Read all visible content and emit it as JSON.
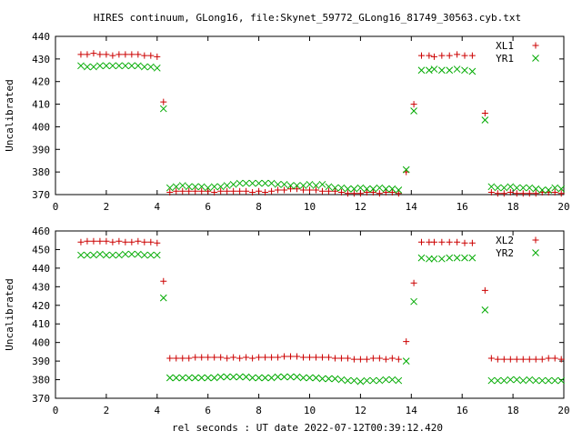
{
  "title": "HIRES continuum, GLong16, file:Skynet_59772_GLong16_81749_30563.cyb.txt",
  "xlabel": "rel seconds : UT date 2022-07-12T00:39:12.420",
  "chart_data": [
    {
      "type": "scatter",
      "ylabel": "Uncalibrated",
      "xlim": [
        0,
        20
      ],
      "ylim": [
        370,
        440
      ],
      "xticks": [
        0,
        2,
        4,
        6,
        8,
        10,
        12,
        14,
        16,
        18,
        20
      ],
      "yticks": [
        370,
        380,
        390,
        400,
        410,
        420,
        430,
        440
      ],
      "legend_position": "top-right",
      "series": [
        {
          "name": "XL1",
          "marker": "plus",
          "color": "#cc0000",
          "x": [
            1.0,
            1.25,
            1.5,
            1.75,
            2.0,
            2.25,
            2.5,
            2.75,
            3.0,
            3.25,
            3.5,
            3.75,
            4.0,
            4.25,
            4.5,
            4.75,
            5.0,
            5.25,
            5.5,
            5.75,
            6.0,
            6.25,
            6.5,
            6.75,
            7.0,
            7.25,
            7.5,
            7.75,
            8.0,
            8.25,
            8.5,
            8.75,
            9.0,
            9.25,
            9.5,
            9.75,
            10.0,
            10.25,
            10.5,
            10.75,
            11.0,
            11.25,
            11.5,
            11.75,
            12.0,
            12.25,
            12.5,
            12.75,
            13.0,
            13.25,
            13.5,
            13.8,
            14.1,
            14.4,
            14.7,
            14.9,
            15.2,
            15.5,
            15.8,
            16.1,
            16.4,
            16.9,
            17.15,
            17.4,
            17.65,
            17.9,
            18.15,
            18.4,
            18.65,
            18.9,
            19.15,
            19.4,
            19.65,
            19.9
          ],
          "y": [
            432,
            432,
            432.5,
            432,
            432,
            431.5,
            432,
            432,
            432,
            432,
            431.5,
            431.5,
            431,
            411,
            371,
            371.5,
            371.5,
            371.5,
            371.5,
            371.5,
            371.5,
            371,
            371.5,
            371.5,
            371.5,
            371.5,
            371.5,
            371,
            371.5,
            371,
            371.5,
            372,
            372,
            372.5,
            372.5,
            372,
            372,
            372,
            371.5,
            371.5,
            371.5,
            371,
            370.5,
            370.5,
            370.5,
            371,
            371,
            370.5,
            371,
            371,
            370.5,
            380,
            410,
            431.5,
            431.5,
            431,
            431.5,
            431.5,
            432,
            431.5,
            431.5,
            406,
            371,
            370.5,
            370.5,
            371,
            370.5,
            370.5,
            370.5,
            370.5,
            371,
            371,
            371,
            370.5
          ]
        },
        {
          "name": "YR1",
          "marker": "cross",
          "color": "#00aa00",
          "x": [
            1.0,
            1.25,
            1.5,
            1.75,
            2.0,
            2.25,
            2.5,
            2.75,
            3.0,
            3.25,
            3.5,
            3.75,
            4.0,
            4.25,
            4.5,
            4.75,
            5.0,
            5.25,
            5.5,
            5.75,
            6.0,
            6.25,
            6.5,
            6.75,
            7.0,
            7.25,
            7.5,
            7.75,
            8.0,
            8.25,
            8.5,
            8.75,
            9.0,
            9.25,
            9.5,
            9.75,
            10.0,
            10.25,
            10.5,
            10.75,
            11.0,
            11.25,
            11.5,
            11.75,
            12.0,
            12.25,
            12.5,
            12.75,
            13.0,
            13.25,
            13.5,
            13.8,
            14.1,
            14.4,
            14.7,
            14.9,
            15.2,
            15.5,
            15.8,
            16.1,
            16.4,
            16.9,
            17.15,
            17.4,
            17.65,
            17.9,
            18.15,
            18.4,
            18.65,
            18.9,
            19.15,
            19.4,
            19.65,
            19.9
          ],
          "y": [
            427,
            426.5,
            426.5,
            427,
            427,
            427,
            427,
            427,
            427,
            427,
            426.5,
            426.5,
            426,
            408,
            373,
            373.5,
            374,
            373.5,
            373.5,
            373.5,
            373,
            373.5,
            373.5,
            374,
            374.5,
            375,
            375,
            375,
            375,
            375,
            375,
            374.5,
            374.5,
            374,
            374,
            374,
            374.5,
            374,
            374.5,
            373.5,
            373,
            373,
            372.5,
            372.5,
            373,
            372.5,
            372.5,
            373,
            372.5,
            372.5,
            372,
            381,
            407,
            425,
            425,
            425.5,
            425,
            425,
            425.5,
            425,
            424.5,
            403,
            373.5,
            373,
            373,
            373.5,
            373,
            373,
            373,
            372.5,
            372,
            372,
            373,
            372.5
          ]
        }
      ]
    },
    {
      "type": "scatter",
      "ylabel": "Uncalibrated",
      "xlim": [
        0,
        20
      ],
      "ylim": [
        370,
        460
      ],
      "xticks": [
        0,
        2,
        4,
        6,
        8,
        10,
        12,
        14,
        16,
        18,
        20
      ],
      "yticks": [
        370,
        380,
        390,
        400,
        410,
        420,
        430,
        440,
        450,
        460
      ],
      "legend_position": "top-right",
      "series": [
        {
          "name": "XL2",
          "marker": "plus",
          "color": "#cc0000",
          "x": [
            1.0,
            1.25,
            1.5,
            1.75,
            2.0,
            2.25,
            2.5,
            2.75,
            3.0,
            3.25,
            3.5,
            3.75,
            4.0,
            4.25,
            4.5,
            4.75,
            5.0,
            5.25,
            5.5,
            5.75,
            6.0,
            6.25,
            6.5,
            6.75,
            7.0,
            7.25,
            7.5,
            7.75,
            8.0,
            8.25,
            8.5,
            8.75,
            9.0,
            9.25,
            9.5,
            9.75,
            10.0,
            10.25,
            10.5,
            10.75,
            11.0,
            11.25,
            11.5,
            11.75,
            12.0,
            12.25,
            12.5,
            12.75,
            13.0,
            13.25,
            13.5,
            13.8,
            14.1,
            14.4,
            14.7,
            14.9,
            15.2,
            15.5,
            15.8,
            16.1,
            16.4,
            16.9,
            17.15,
            17.4,
            17.65,
            17.9,
            18.15,
            18.4,
            18.65,
            18.9,
            19.15,
            19.4,
            19.65,
            19.9
          ],
          "y": [
            454,
            454.5,
            454.5,
            454.5,
            454.5,
            454,
            454.5,
            454,
            454,
            454.5,
            454,
            454,
            453.5,
            433,
            391.5,
            391.5,
            391.5,
            391.5,
            392,
            392,
            392,
            392,
            392,
            391.5,
            392,
            391.5,
            392,
            391.5,
            392,
            392,
            392,
            392,
            392.5,
            392.5,
            392.5,
            392,
            392,
            392,
            392,
            392,
            391.5,
            391.5,
            391.5,
            391,
            391,
            391,
            391.5,
            391.5,
            391,
            391.5,
            391,
            400.5,
            432,
            454,
            454,
            454,
            454,
            454,
            454,
            453.5,
            453.5,
            428,
            391.5,
            391,
            391,
            391,
            391,
            391,
            391,
            391,
            391,
            391.5,
            391.5,
            391
          ]
        },
        {
          "name": "YR2",
          "marker": "cross",
          "color": "#00aa00",
          "x": [
            1.0,
            1.25,
            1.5,
            1.75,
            2.0,
            2.25,
            2.5,
            2.75,
            3.0,
            3.25,
            3.5,
            3.75,
            4.0,
            4.25,
            4.5,
            4.75,
            5.0,
            5.25,
            5.5,
            5.75,
            6.0,
            6.25,
            6.5,
            6.75,
            7.0,
            7.25,
            7.5,
            7.75,
            8.0,
            8.25,
            8.5,
            8.75,
            9.0,
            9.25,
            9.5,
            9.75,
            10.0,
            10.25,
            10.5,
            10.75,
            11.0,
            11.25,
            11.5,
            11.75,
            12.0,
            12.25,
            12.5,
            12.75,
            13.0,
            13.25,
            13.5,
            13.8,
            14.1,
            14.4,
            14.7,
            14.9,
            15.2,
            15.5,
            15.8,
            16.1,
            16.4,
            16.9,
            17.15,
            17.4,
            17.65,
            17.9,
            18.15,
            18.4,
            18.65,
            18.9,
            19.15,
            19.4,
            19.65,
            19.9
          ],
          "y": [
            447,
            447,
            447,
            447.5,
            447,
            447,
            447,
            447.5,
            447.5,
            447.5,
            447,
            447,
            447,
            424,
            381,
            381,
            381,
            381,
            381,
            381,
            381,
            381,
            381.5,
            381.5,
            381.5,
            381.5,
            381.5,
            381,
            381,
            381,
            381,
            381.5,
            381.5,
            381.5,
            381.5,
            381,
            381,
            381,
            380.5,
            380.5,
            380.5,
            380,
            379.5,
            379.5,
            379,
            379.5,
            379.5,
            379.5,
            380,
            380,
            379.5,
            390,
            422,
            445.5,
            445,
            445,
            445,
            445.5,
            445.5,
            445.5,
            445.5,
            417.5,
            379.5,
            379.5,
            379.5,
            380,
            380,
            379.5,
            380,
            379.5,
            379.5,
            379.5,
            379.5,
            379.5
          ]
        }
      ]
    }
  ]
}
